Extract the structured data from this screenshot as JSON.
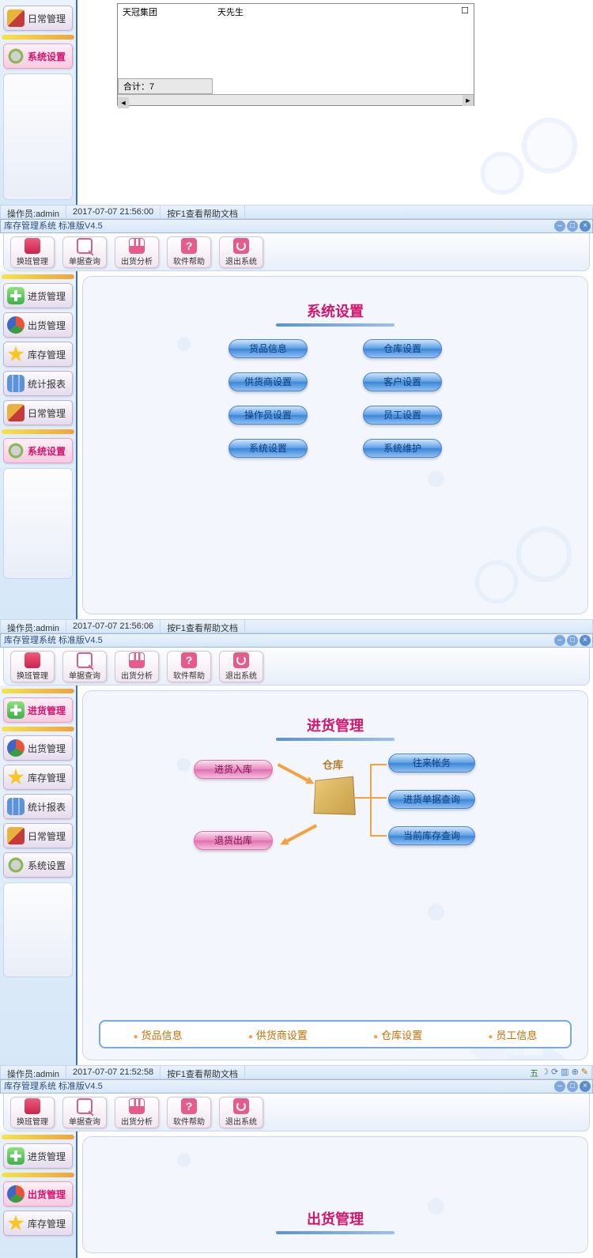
{
  "app_title": "库存管理系统 标准版V4.5",
  "toolbar": [
    {
      "label": "换班管理",
      "icon": "i-shoe"
    },
    {
      "label": "单据查询",
      "icon": "i-search"
    },
    {
      "label": "出货分析",
      "icon": "i-chart"
    },
    {
      "label": "软件帮助",
      "icon": "i-help",
      "glyph": "?"
    },
    {
      "label": "退出系统",
      "icon": "i-exit"
    }
  ],
  "sidebar": [
    {
      "label": "进货管理",
      "icon": "i-plus"
    },
    {
      "label": "出货管理",
      "icon": "i-pie"
    },
    {
      "label": "库存管理",
      "icon": "i-star"
    },
    {
      "label": "统计报表",
      "icon": "i-bars"
    },
    {
      "label": "日常管理",
      "icon": "i-brush"
    },
    {
      "label": "系统设置",
      "icon": "i-gear"
    }
  ],
  "status": {
    "operator_label": "操作员:",
    "operator": "admin",
    "help": "按F1查看帮助文档"
  },
  "panel1": {
    "row": {
      "company": "天冠集团",
      "contact": "天先生",
      "checkbox": "☐"
    },
    "total_label": "合计：",
    "total_value": "7",
    "datetime": "2017-07-07 21:56:00"
  },
  "panel2": {
    "title": "系统设置",
    "buttons_left": [
      "货品信息",
      "供货商设置",
      "操作员设置",
      "系统设置"
    ],
    "buttons_right": [
      "仓库设置",
      "客户设置",
      "员工设置",
      "系统维护"
    ],
    "datetime": "2017-07-07 21:56:06",
    "active_sidebar": 5
  },
  "panel3": {
    "title": "进货管理",
    "left_top_btn": "进货入库",
    "left_bot_btn": "退货出库",
    "center_label": "仓库",
    "right_btns": [
      "往来帐务",
      "进货单据查询",
      "当前库存查询"
    ],
    "footer_links": [
      "货品信息",
      "供货商设置",
      "仓库设置",
      "员工信息"
    ],
    "datetime": "2017-07-07 21:52:58",
    "active_sidebar": 0,
    "tray": "五"
  },
  "panel4": {
    "title": "出货管理",
    "active_sidebar": 1
  },
  "colors": {
    "accent_pink": "#d6136e",
    "accent_blue": "#3c86d8",
    "orange": "#f2a23e"
  }
}
